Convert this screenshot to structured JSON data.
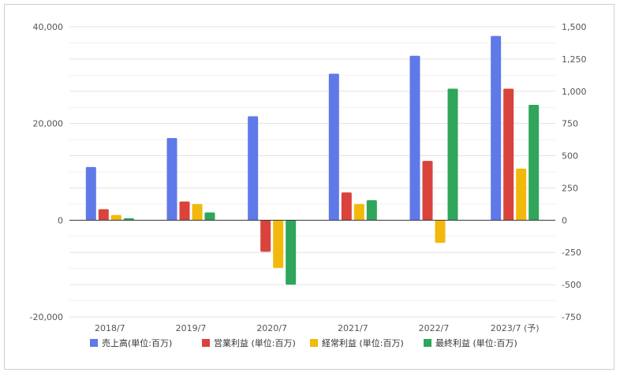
{
  "chart_data": {
    "type": "bar",
    "title": "",
    "xlabel": "",
    "ylabel": "",
    "categories": [
      "2018/7",
      "2019/7",
      "2020/7",
      "2021/7",
      "2022/7",
      "2023/7 (予)"
    ],
    "series": [
      {
        "name": "売上高(単位:百万)",
        "axis": "left",
        "color": "#6079e8",
        "values": [
          11000,
          17000,
          21500,
          30300,
          34000,
          38100
        ]
      },
      {
        "name": "営業利益 (単位:百万)",
        "axis": "right",
        "color": "#d9433b",
        "values": [
          85,
          145,
          -245,
          215,
          460,
          1020
        ]
      },
      {
        "name": "経常利益 (単位:百万)",
        "axis": "right",
        "color": "#f2b90c",
        "values": [
          40,
          125,
          -370,
          125,
          -175,
          400
        ]
      },
      {
        "name": "最終利益 (単位:百万)",
        "axis": "right",
        "color": "#2fa65b",
        "values": [
          15,
          60,
          -500,
          155,
          1020,
          895
        ]
      }
    ],
    "left_axis": {
      "ylim": [
        -20000,
        40000
      ],
      "ticks": [
        -20000,
        0,
        20000,
        40000
      ],
      "tick_labels": [
        "-20,000",
        "0",
        "20,000",
        "40,000"
      ]
    },
    "right_axis": {
      "ylim": [
        -750,
        1500
      ],
      "ticks": [
        -750,
        -500,
        -250,
        0,
        250,
        500,
        750,
        1000,
        1250,
        1500
      ],
      "tick_labels": [
        "-750",
        "-500",
        "-250",
        "0",
        "250",
        "500",
        "750",
        "1,000",
        "1,250",
        "1,500"
      ]
    },
    "grid": true,
    "legend_position": "bottom"
  }
}
